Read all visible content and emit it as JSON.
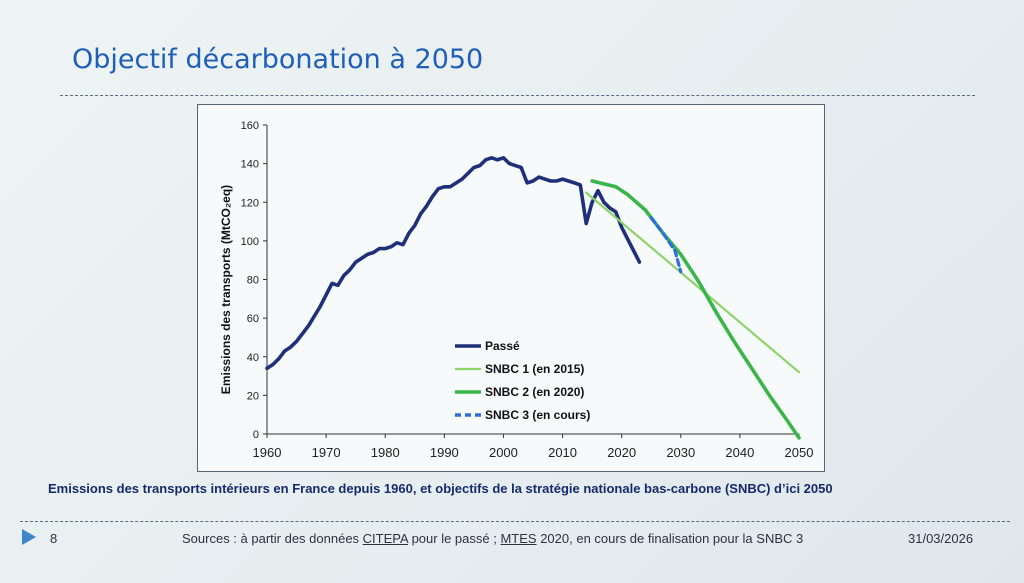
{
  "slide": {
    "title": "Objectif décarbonation à 2050",
    "caption": "Emissions des transports intérieurs en France depuis 1960, et objectifs de la stratégie nationale bas-carbone (SNBC) d’ici 2050",
    "footer": {
      "page": "8",
      "sources_prefix": "Sources : à partir des données ",
      "source_link1": "CITEPA",
      "sources_mid": " pour le passé ; ",
      "source_link2": "MTES",
      "sources_suffix": " 2020, en cours de finalisation pour la SNBC 3",
      "date": "31/03/2026"
    }
  },
  "chart_data": {
    "type": "line",
    "title": "",
    "xlabel": "",
    "ylabel": "Emissions des transports (MtCO₂eq)",
    "xlim": [
      1960,
      2050
    ],
    "ylim": [
      0,
      160
    ],
    "xticks": [
      1960,
      1970,
      1980,
      1990,
      2000,
      2010,
      2020,
      2030,
      2040,
      2050
    ],
    "yticks": [
      0,
      20,
      40,
      60,
      80,
      100,
      120,
      140,
      160
    ],
    "grid": false,
    "legend_position": "center",
    "series": [
      {
        "name": "Passé",
        "color": "#1f2f7a",
        "dash": "solid",
        "x": [
          1960,
          1961,
          1962,
          1963,
          1964,
          1965,
          1966,
          1967,
          1968,
          1969,
          1970,
          1971,
          1972,
          1973,
          1974,
          1975,
          1976,
          1977,
          1978,
          1979,
          1980,
          1981,
          1982,
          1983,
          1984,
          1985,
          1986,
          1987,
          1988,
          1989,
          1990,
          1991,
          1992,
          1993,
          1994,
          1995,
          1996,
          1997,
          1998,
          1999,
          2000,
          2001,
          2002,
          2003,
          2004,
          2005,
          2006,
          2007,
          2008,
          2009,
          2010,
          2011,
          2012,
          2013,
          2014,
          2015,
          2016,
          2017,
          2018,
          2019,
          2020,
          2021,
          2022,
          2023
        ],
        "values": [
          34,
          36,
          39,
          43,
          45,
          48,
          52,
          56,
          61,
          66,
          72,
          78,
          77,
          82,
          85,
          89,
          91,
          93,
          94,
          96,
          96,
          97,
          99,
          98,
          104,
          108,
          114,
          118,
          123,
          127,
          128,
          128,
          130,
          132,
          135,
          138,
          139,
          142,
          143,
          142,
          143,
          140,
          139,
          138,
          130,
          131,
          133,
          132,
          131,
          131,
          132,
          131,
          130,
          129,
          109,
          120,
          126,
          120,
          117,
          115,
          107,
          101,
          95,
          89
        ]
      },
      {
        "name": "SNBC 1 (en 2015)",
        "color": "#8ed36a",
        "dash": "solid",
        "x": [
          2014,
          2050
        ],
        "values": [
          125,
          32
        ]
      },
      {
        "name": "SNBC 2 (en 2020)",
        "color": "#39b54a",
        "dash": "solid",
        "x": [
          2015,
          2019,
          2021,
          2024,
          2027,
          2030,
          2033,
          2036,
          2039,
          2042,
          2045,
          2048,
          2050
        ],
        "values": [
          131,
          128,
          124,
          116,
          104,
          93,
          79,
          63,
          48,
          34,
          20,
          7,
          -2
        ]
      },
      {
        "name": "SNBC 3 (en cours)",
        "color": "#2e6fd9",
        "dash": "dashed",
        "x": [
          2025,
          2027,
          2029,
          2030
        ],
        "values": [
          112,
          104,
          95,
          84
        ]
      }
    ]
  }
}
